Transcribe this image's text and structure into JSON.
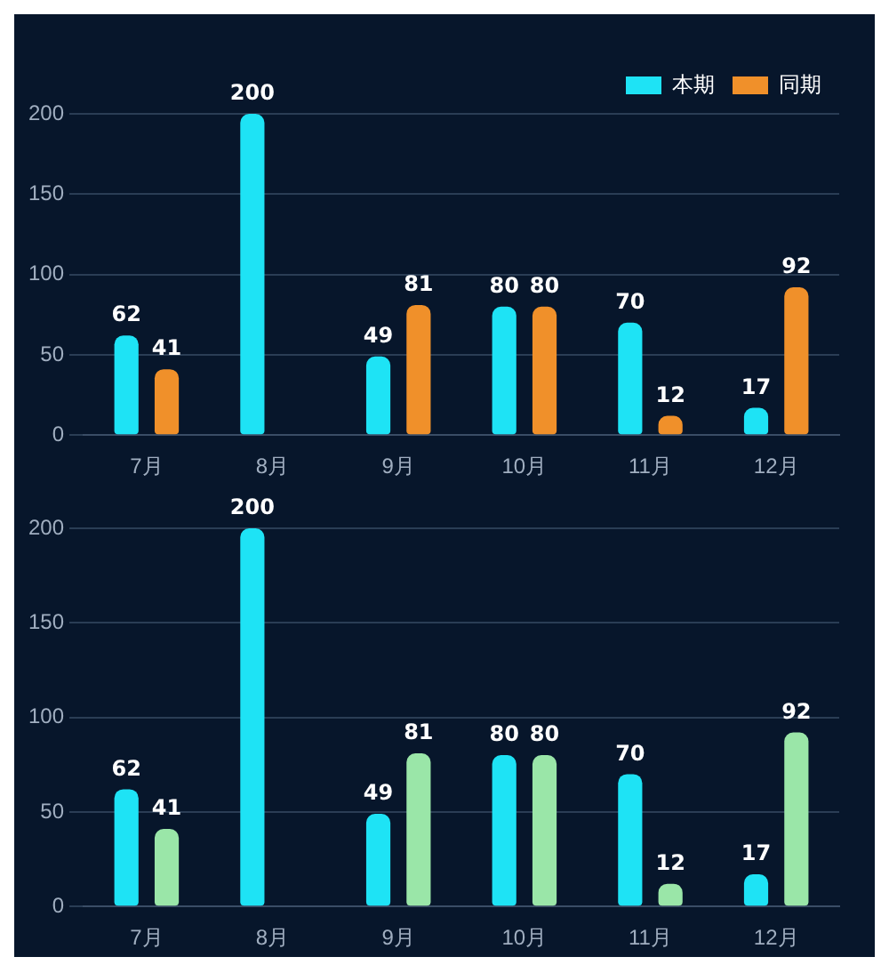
{
  "chart_data": [
    {
      "type": "bar",
      "categories": [
        "7月",
        "8月",
        "9月",
        "10月",
        "11月",
        "12月"
      ],
      "series": [
        {
          "name": "本期",
          "color": "#1ee3f5",
          "values": [
            62,
            200,
            49,
            80,
            70,
            17
          ]
        },
        {
          "name": "同期",
          "color": "#f0902a",
          "values": [
            41,
            null,
            81,
            80,
            12,
            92
          ]
        }
      ],
      "ylim": [
        0,
        200
      ],
      "yticks": [
        0,
        50,
        100,
        150,
        200
      ],
      "grid": "y",
      "legend": "top right",
      "data_labels": true
    },
    {
      "type": "bar",
      "categories": [
        "7月",
        "8月",
        "9月",
        "10月",
        "11月",
        "12月"
      ],
      "series": [
        {
          "color": "#1ee3f5",
          "values": [
            62,
            200,
            49,
            80,
            70,
            17
          ]
        },
        {
          "color": "#9ae6a8",
          "values": [
            41,
            null,
            81,
            80,
            12,
            92
          ]
        }
      ],
      "ylim": [
        0,
        200
      ],
      "yticks": [
        0,
        50,
        100,
        150,
        200
      ],
      "grid": "y",
      "data_labels": true
    }
  ]
}
